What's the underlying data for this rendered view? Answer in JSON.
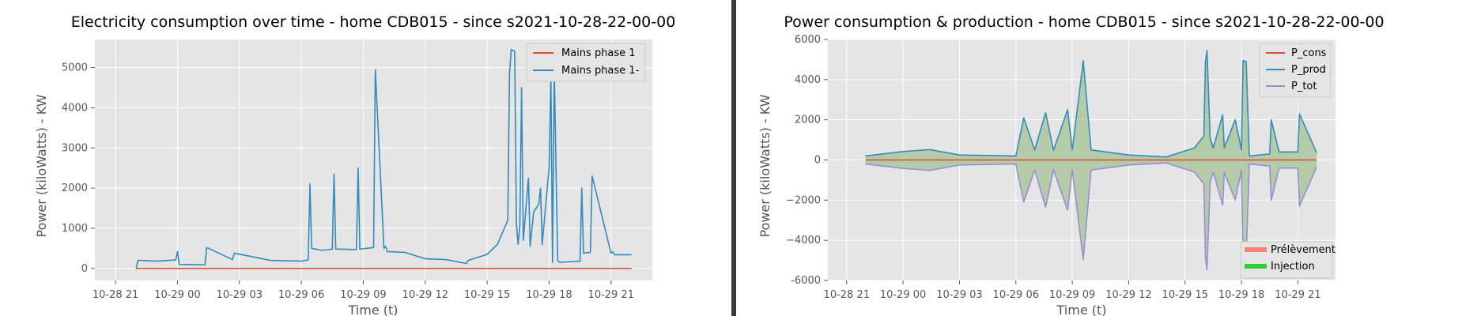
{
  "colors": {
    "background": "#e5e5e5",
    "grid": "#ffffff",
    "mains_phase_1": "#e24a33",
    "mains_phase_1_minus": "#348abd",
    "p_cons": "#e24a33",
    "p_prod": "#348abd",
    "p_tot": "#988ed5",
    "prelevement": "#fa8072",
    "injection": "#32cd32",
    "fill_between": "#9fc08d"
  },
  "chart_data": [
    {
      "type": "line",
      "title": "Electricity consumption over time - home CDB015 - since s2021-10-28-22-00-00",
      "xlabel": "Time (t)",
      "ylabel": "Power (kiloWatts) - KW",
      "x_ticks": [
        "10-28 21",
        "10-29 00",
        "10-29 03",
        "10-29 06",
        "10-29 09",
        "10-29 12",
        "10-29 15",
        "10-29 18",
        "10-29 21"
      ],
      "y_ticks": [
        "0",
        "1000",
        "2000",
        "3000",
        "4000",
        "5000"
      ],
      "xlim": [
        "2021-10-28 20:00",
        "2021-10-29 23:00"
      ],
      "ylim": [
        -300,
        5700
      ],
      "grid": true,
      "legend_position": "top-right",
      "series": [
        {
          "name": "Mains phase 1",
          "x": [
            "2021-10-28 22:00",
            "2021-10-29 22:00"
          ],
          "y": [
            0,
            0
          ]
        },
        {
          "name": "Mains phase 1-",
          "x": [
            "2021-10-28 22:00",
            "2021-10-28 22:05",
            "2021-10-28 23:00",
            "2021-10-28 23:55",
            "2021-10-29 00:00",
            "2021-10-29 00:05",
            "2021-10-29 01:20",
            "2021-10-29 01:25",
            "2021-10-29 02:40",
            "2021-10-29 02:45",
            "2021-10-29 04:30",
            "2021-10-29 06:00",
            "2021-10-29 06:20",
            "2021-10-29 06:25",
            "2021-10-29 06:30",
            "2021-10-29 07:00",
            "2021-10-29 07:30",
            "2021-10-29 07:35",
            "2021-10-29 07:40",
            "2021-10-29 08:40",
            "2021-10-29 08:45",
            "2021-10-29 08:50",
            "2021-10-29 09:30",
            "2021-10-29 09:35",
            "2021-10-29 10:00",
            "2021-10-29 10:05",
            "2021-10-29 10:10",
            "2021-10-29 11:00",
            "2021-10-29 12:00",
            "2021-10-29 13:00",
            "2021-10-29 14:00",
            "2021-10-29 14:05",
            "2021-10-29 15:00",
            "2021-10-29 15:30",
            "2021-10-29 16:00",
            "2021-10-29 16:05",
            "2021-10-29 16:10",
            "2021-10-29 16:20",
            "2021-10-29 16:25",
            "2021-10-29 16:30",
            "2021-10-29 16:35",
            "2021-10-29 16:40",
            "2021-10-29 16:45",
            "2021-10-29 17:00",
            "2021-10-29 17:05",
            "2021-10-29 17:15",
            "2021-10-29 17:30",
            "2021-10-29 17:35",
            "2021-10-29 17:40",
            "2021-10-29 18:00",
            "2021-10-29 18:05",
            "2021-10-29 18:10",
            "2021-10-29 18:15",
            "2021-10-29 18:25",
            "2021-10-29 18:30",
            "2021-10-29 19:30",
            "2021-10-29 19:35",
            "2021-10-29 19:40",
            "2021-10-29 20:00",
            "2021-10-29 20:05",
            "2021-10-29 21:00",
            "2021-10-29 21:05",
            "2021-10-29 21:10",
            "2021-10-29 22:00"
          ],
          "y": [
            0,
            200,
            180,
            210,
            420,
            100,
            90,
            520,
            220,
            380,
            200,
            180,
            210,
            2100,
            500,
            450,
            480,
            2350,
            480,
            470,
            2500,
            480,
            520,
            4950,
            500,
            550,
            420,
            400,
            240,
            220,
            120,
            200,
            350,
            600,
            1200,
            4850,
            5450,
            5400,
            1100,
            600,
            1050,
            4500,
            700,
            2250,
            550,
            1400,
            1600,
            2000,
            600,
            2500,
            4900,
            150,
            4950,
            200,
            150,
            180,
            2000,
            380,
            400,
            2300,
            380,
            420,
            340,
            340
          ]
        }
      ]
    },
    {
      "type": "line",
      "title": "Power consumption & production - home CDB015 - since s2021-10-28-22-00-00",
      "xlabel": "Time (t)",
      "ylabel": "Power (kiloWatts) - KW",
      "x_ticks": [
        "10-28 21",
        "10-29 00",
        "10-29 03",
        "10-29 06",
        "10-29 09",
        "10-29 12",
        "10-29 15",
        "10-29 18",
        "10-29 21"
      ],
      "y_ticks": [
        "-6000",
        "−4000",
        "−2000",
        "0",
        "2000",
        "4000",
        "6000"
      ],
      "xlim": [
        "2021-10-28 20:00",
        "2021-10-29 23:00"
      ],
      "ylim": [
        -6000,
        6000
      ],
      "grid": true,
      "legend_position": "top-right",
      "series": [
        {
          "name": "P_cons",
          "x": [
            "2021-10-28 22:00",
            "2021-10-29 22:00"
          ],
          "y": [
            0,
            0
          ]
        },
        {
          "name": "P_prod",
          "x": [
            "2021-10-28 22:00",
            "2021-10-29 00:00",
            "2021-10-29 01:25",
            "2021-10-29 03:00",
            "2021-10-29 06:00",
            "2021-10-29 06:25",
            "2021-10-29 07:00",
            "2021-10-29 07:35",
            "2021-10-29 08:00",
            "2021-10-29 08:45",
            "2021-10-29 09:00",
            "2021-10-29 09:35",
            "2021-10-29 10:00",
            "2021-10-29 12:00",
            "2021-10-29 14:00",
            "2021-10-29 15:30",
            "2021-10-29 16:00",
            "2021-10-29 16:05",
            "2021-10-29 16:10",
            "2021-10-29 16:20",
            "2021-10-29 16:30",
            "2021-10-29 17:00",
            "2021-10-29 17:05",
            "2021-10-29 17:40",
            "2021-10-29 18:00",
            "2021-10-29 18:05",
            "2021-10-29 18:15",
            "2021-10-29 18:25",
            "2021-10-29 19:30",
            "2021-10-29 19:35",
            "2021-10-29 20:00",
            "2021-10-29 21:00",
            "2021-10-29 21:05",
            "2021-10-29 22:00"
          ],
          "y": [
            200,
            420,
            520,
            250,
            200,
            2100,
            500,
            2350,
            480,
            2500,
            500,
            4950,
            500,
            250,
            150,
            600,
            1200,
            4900,
            5450,
            1100,
            600,
            2250,
            600,
            2000,
            500,
            4950,
            4900,
            200,
            300,
            2000,
            400,
            400,
            2300,
            350
          ]
        },
        {
          "name": "P_tot",
          "x": [
            "2021-10-28 22:00",
            "2021-10-29 00:00",
            "2021-10-29 01:25",
            "2021-10-29 03:00",
            "2021-10-29 06:00",
            "2021-10-29 06:25",
            "2021-10-29 07:00",
            "2021-10-29 07:35",
            "2021-10-29 08:00",
            "2021-10-29 08:45",
            "2021-10-29 09:00",
            "2021-10-29 09:35",
            "2021-10-29 10:00",
            "2021-10-29 12:00",
            "2021-10-29 14:00",
            "2021-10-29 15:30",
            "2021-10-29 16:00",
            "2021-10-29 16:05",
            "2021-10-29 16:10",
            "2021-10-29 16:20",
            "2021-10-29 16:30",
            "2021-10-29 17:00",
            "2021-10-29 17:05",
            "2021-10-29 17:40",
            "2021-10-29 18:00",
            "2021-10-29 18:05",
            "2021-10-29 18:15",
            "2021-10-29 18:25",
            "2021-10-29 19:30",
            "2021-10-29 19:35",
            "2021-10-29 20:00",
            "2021-10-29 21:00",
            "2021-10-29 21:05",
            "2021-10-29 22:00"
          ],
          "y": [
            -200,
            -420,
            -520,
            -250,
            -200,
            -2100,
            -500,
            -2350,
            -480,
            -2500,
            -500,
            -4950,
            -500,
            -250,
            -150,
            -600,
            -1200,
            -4900,
            -5450,
            -1100,
            -600,
            -2250,
            -600,
            -2000,
            -500,
            -4950,
            -4900,
            -200,
            -300,
            -2000,
            -400,
            -400,
            -2300,
            -350
          ]
        }
      ],
      "fill_legend": [
        "Prélèvement",
        "Injection"
      ]
    }
  ]
}
